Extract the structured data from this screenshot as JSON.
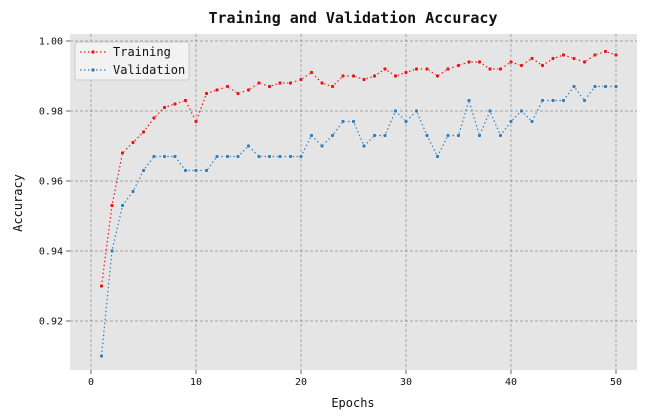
{
  "chart_data": {
    "type": "line",
    "title": "Training and Validation Accuracy",
    "xlabel": "Epochs",
    "ylabel": "Accuracy",
    "xlim": [
      -2,
      52
    ],
    "ylim": [
      0.906,
      1.002
    ],
    "xticks": [
      0,
      10,
      20,
      30,
      40,
      50
    ],
    "yticks": [
      0.92,
      0.94,
      0.96,
      0.98,
      1.0
    ],
    "ytick_labels": [
      "0.92",
      "0.94",
      "0.96",
      "0.98",
      "1.00"
    ],
    "grid": true,
    "legend_position": "top-left",
    "x": [
      1,
      2,
      3,
      4,
      5,
      6,
      7,
      8,
      9,
      10,
      11,
      12,
      13,
      14,
      15,
      16,
      17,
      18,
      19,
      20,
      21,
      22,
      23,
      24,
      25,
      26,
      27,
      28,
      29,
      30,
      31,
      32,
      33,
      34,
      35,
      36,
      37,
      38,
      39,
      40,
      41,
      42,
      43,
      44,
      45,
      46,
      47,
      48,
      49,
      50
    ],
    "series": [
      {
        "name": "Training",
        "color": "#e41a1c",
        "values": [
          0.93,
          0.953,
          0.968,
          0.971,
          0.974,
          0.978,
          0.981,
          0.982,
          0.983,
          0.977,
          0.985,
          0.986,
          0.987,
          0.985,
          0.986,
          0.988,
          0.987,
          0.988,
          0.988,
          0.989,
          0.991,
          0.988,
          0.987,
          0.99,
          0.99,
          0.989,
          0.99,
          0.992,
          0.99,
          0.991,
          0.992,
          0.992,
          0.99,
          0.992,
          0.993,
          0.994,
          0.994,
          0.992,
          0.992,
          0.994,
          0.993,
          0.995,
          0.993,
          0.995,
          0.996,
          0.995,
          0.994,
          0.996,
          0.997,
          0.996
        ]
      },
      {
        "name": "Validation",
        "color": "#377eb8",
        "values": [
          0.91,
          0.94,
          0.953,
          0.957,
          0.963,
          0.967,
          0.967,
          0.967,
          0.963,
          0.963,
          0.963,
          0.967,
          0.967,
          0.967,
          0.97,
          0.967,
          0.967,
          0.967,
          0.967,
          0.967,
          0.973,
          0.97,
          0.973,
          0.977,
          0.977,
          0.97,
          0.973,
          0.973,
          0.98,
          0.977,
          0.98,
          0.973,
          0.967,
          0.973,
          0.973,
          0.983,
          0.973,
          0.98,
          0.973,
          0.977,
          0.98,
          0.977,
          0.983,
          0.983,
          0.983,
          0.987,
          0.983,
          0.987,
          0.987,
          0.987
        ]
      }
    ]
  }
}
